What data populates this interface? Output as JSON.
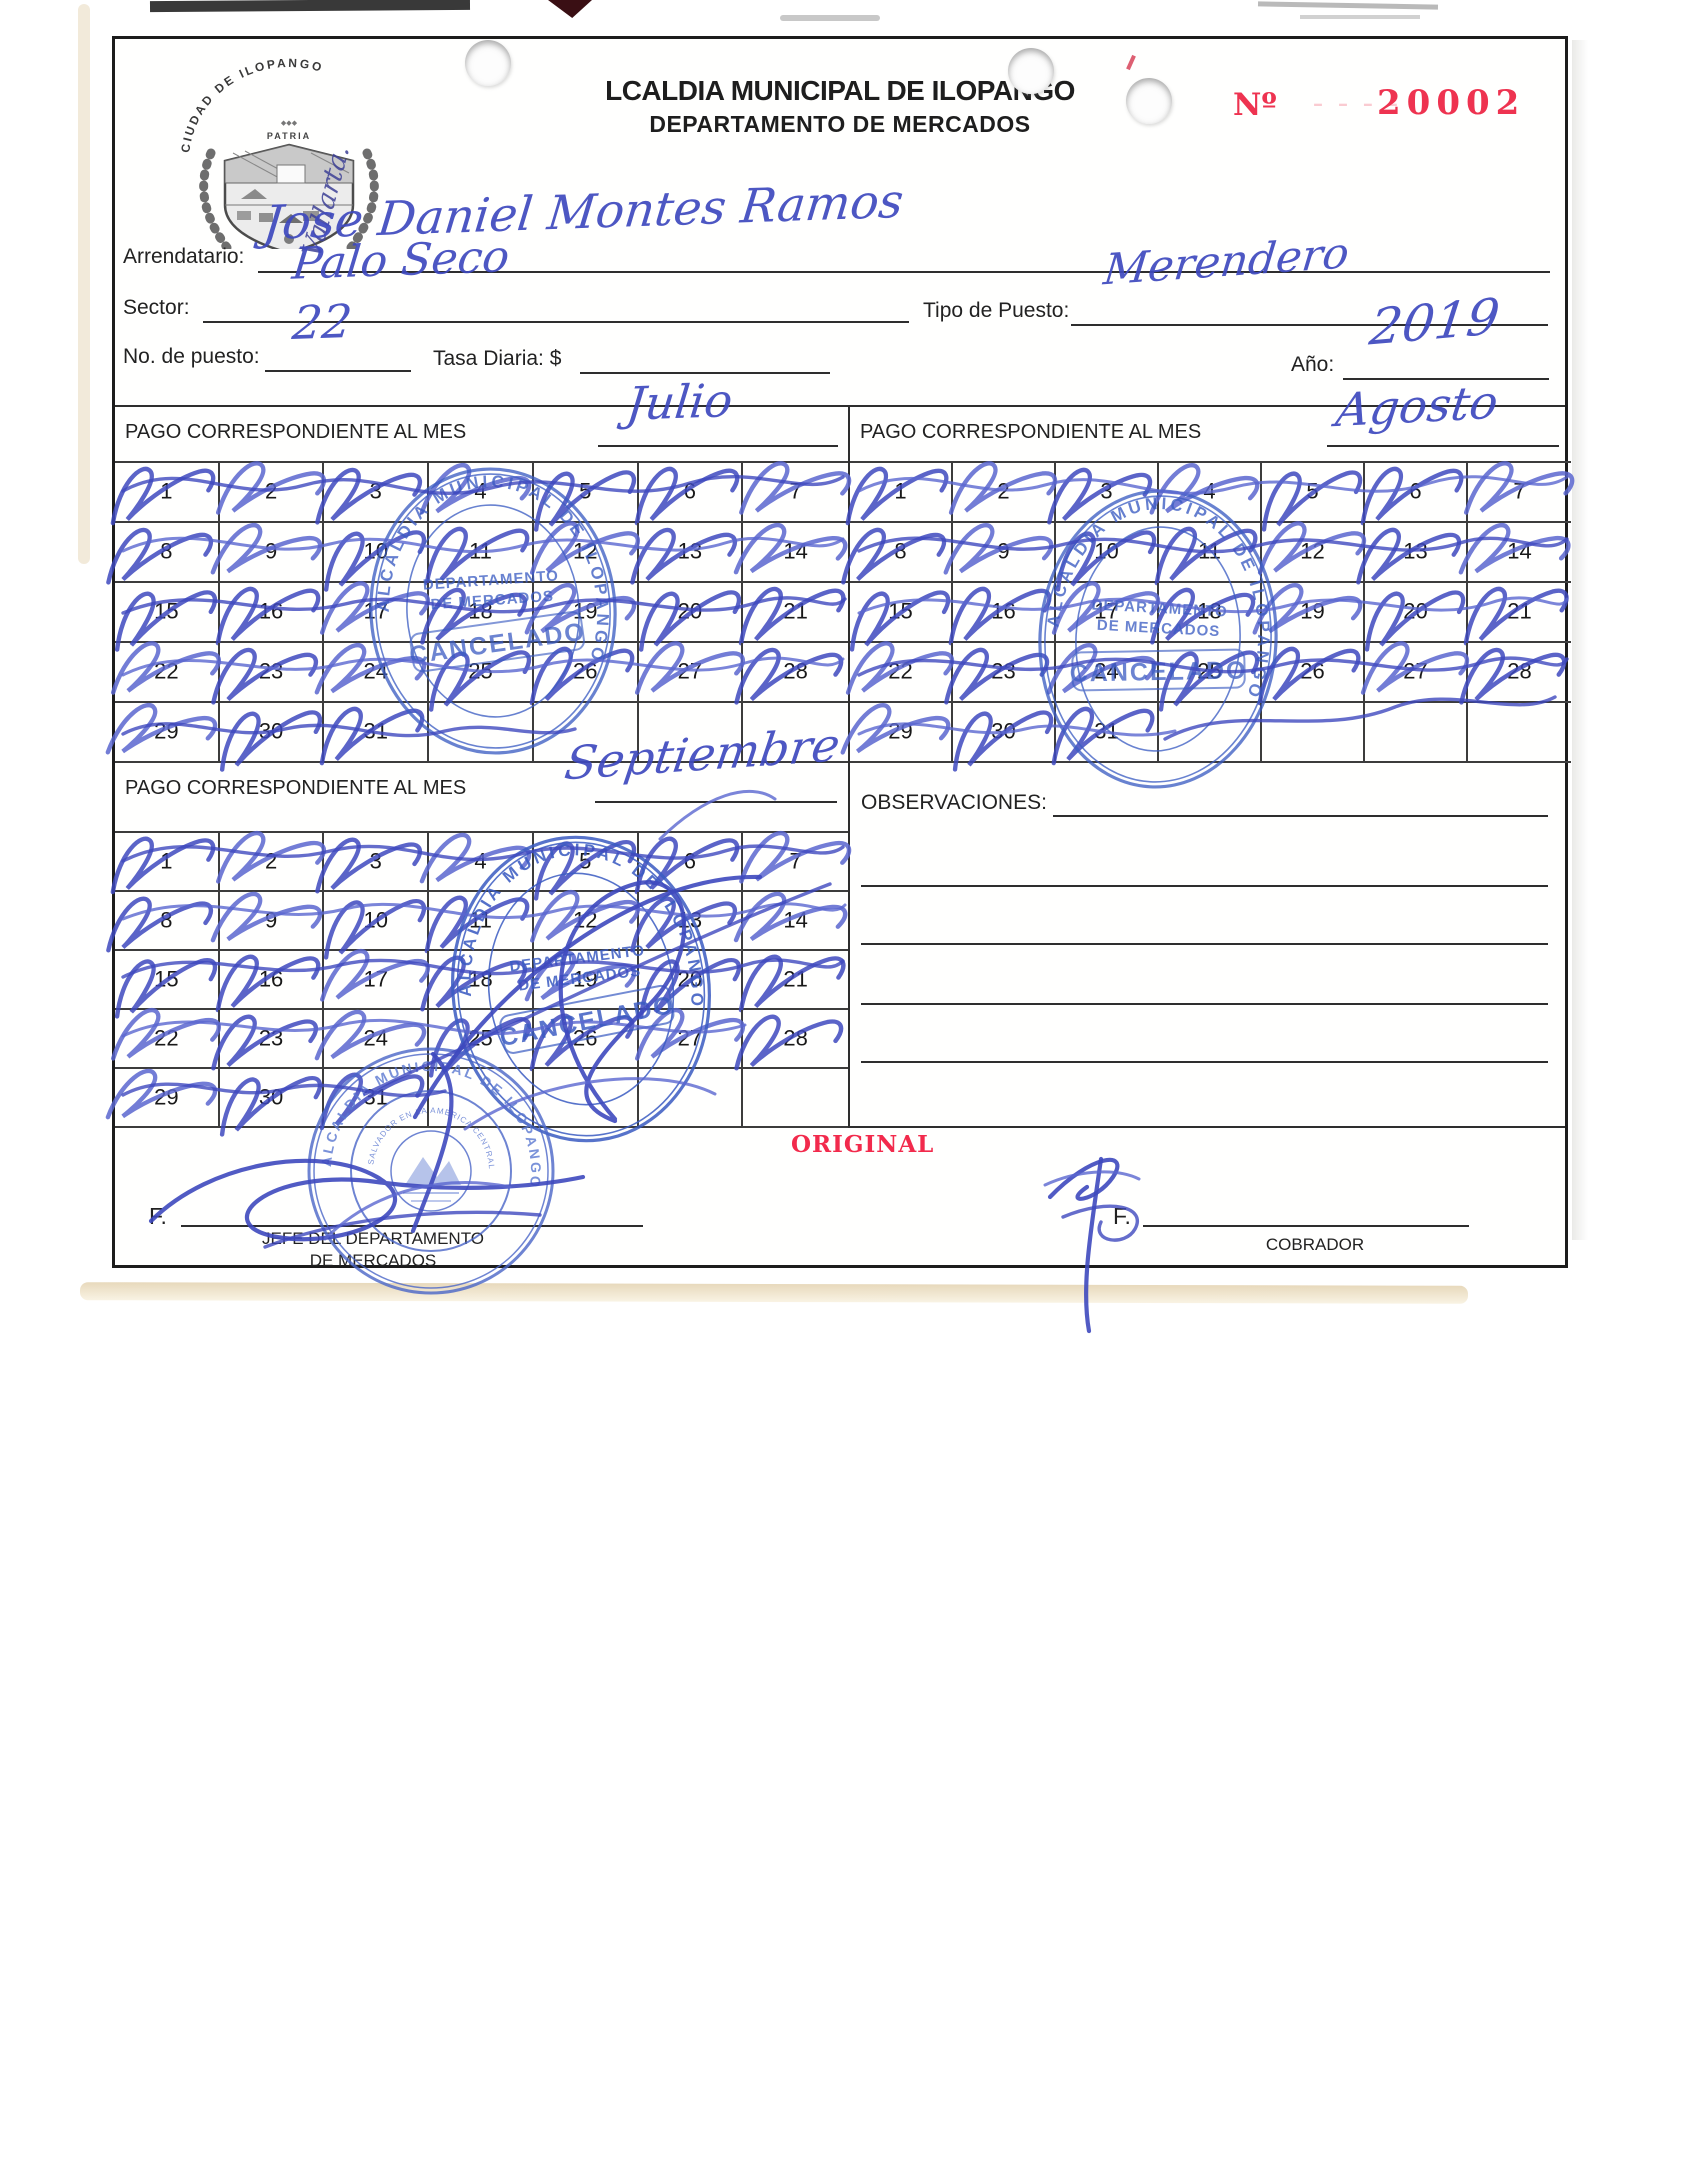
{
  "header": {
    "title": "LCALDIA MUNICIPAL DE ILOPANGO",
    "subtitle": "DEPARTAMENTO DE MERCADOS",
    "number_label": "Nº",
    "number_faded": "– – – –",
    "number_value": "20002",
    "crest_top": "CIUDAD DE ILOPANGO",
    "crest_motto": "PATRIA",
    "annotation": "Vallarta."
  },
  "fields": {
    "arrendatario_label": "Arrendatario:",
    "arrendatario_value": "Jose Daniel Montes Ramos",
    "sector_label": "Sector:",
    "sector_value": "Palo Seco",
    "tipo_label": "Tipo de Puesto:",
    "tipo_value": "Merendero",
    "puesto_label": "No. de puesto:",
    "puesto_value": "22",
    "tasa_label": "Tasa Diaria: $",
    "tasa_value": "",
    "anio_label": "Año:",
    "anio_value": "2019"
  },
  "months": {
    "pago_label": "PAGO CORRESPONDIENTE AL MES",
    "july": {
      "name": "Julio",
      "days": [
        "1",
        "2",
        "3",
        "4",
        "5",
        "6",
        "7",
        "8",
        "9",
        "10",
        "11",
        "12",
        "13",
        "14",
        "15",
        "16",
        "17",
        "18",
        "19",
        "20",
        "21",
        "22",
        "23",
        "24",
        "25",
        "26",
        "27",
        "28",
        "29",
        "30",
        "31"
      ]
    },
    "august": {
      "name": "Agosto",
      "days": [
        "1",
        "2",
        "3",
        "4",
        "5",
        "6",
        "7",
        "8",
        "9",
        "10",
        "11",
        "12",
        "13",
        "14",
        "15",
        "16",
        "17",
        "18",
        "19",
        "20",
        "21",
        "22",
        "23",
        "24",
        "25",
        "26",
        "27",
        "28",
        "29",
        "30",
        "31"
      ]
    },
    "september": {
      "name": "Septiembre",
      "days": [
        "1",
        "2",
        "3",
        "4",
        "5",
        "6",
        "7",
        "8",
        "9",
        "10",
        "11",
        "12",
        "13",
        "14",
        "15",
        "16",
        "17",
        "18",
        "19",
        "20",
        "21",
        "22",
        "23",
        "24",
        "25",
        "26",
        "27",
        "28",
        "29",
        "30",
        "31"
      ]
    }
  },
  "observaciones_label": "OBSERVACIONES:",
  "stamps": {
    "ring": "ALCALDIA MUNICIPAL DE ILOPANGO",
    "line1": "DEPARTAMENTO",
    "line2": "DE MERCADOS",
    "cancel": "CANCELADO",
    "round_ring": "ALCALDIA MUNICIPAL DE ILOPANGO",
    "round_inner": "SALVADOR EN LA AMERICA CENTRAL"
  },
  "footer": {
    "original": "ORIGINAL",
    "f_label": "F.",
    "left_role_line1": "JEFE DEL DEPARTAMENTO",
    "left_role_line2": "DE MERCADOS",
    "right_role": "COBRADOR"
  }
}
